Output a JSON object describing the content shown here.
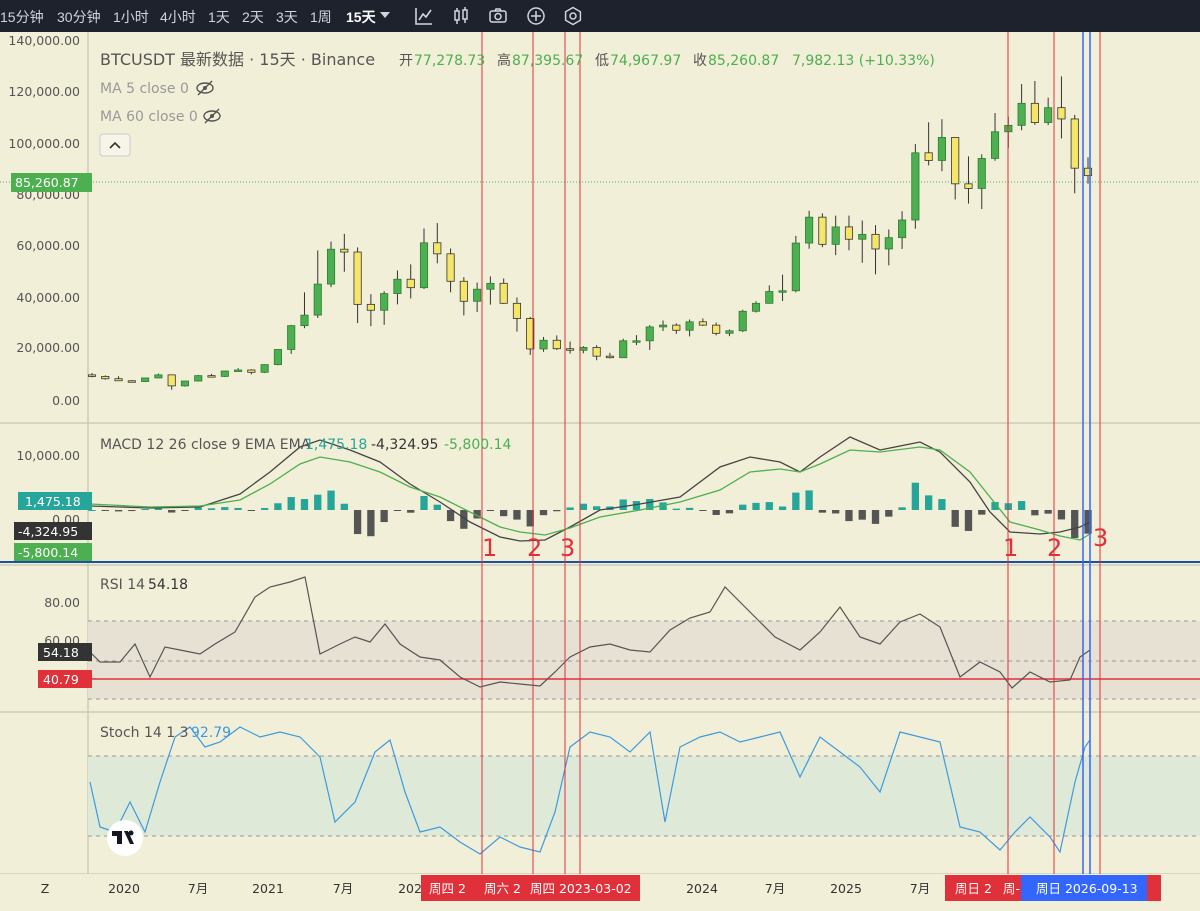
{
  "toolbar": {
    "intervals": [
      "15分钟",
      "30分钟",
      "1小时",
      "4小时",
      "1天",
      "2天",
      "3天",
      "1周"
    ],
    "active_interval": "15天",
    "icons": [
      "chevron-down-icon",
      "indicators-icon",
      "candle-style-icon",
      "camera-icon",
      "add-icon",
      "settings-icon"
    ]
  },
  "legend": {
    "symbol": "BTCUSDT 最新数据 · 15天 · Binance",
    "open_label": "开",
    "open": "77,278.73",
    "high_label": "高",
    "high": "87,395.67",
    "low_label": "低",
    "low": "74,967.97",
    "close_label": "收",
    "close": "85,260.87",
    "change": "7,982.13 (+10.33%)",
    "ma5": "MA 5 close 0",
    "ma60": "MA 60 close 0",
    "collapse_icon": "chevron-up-icon",
    "hidden_icon": "eye-slash-icon"
  },
  "colors": {
    "background": "#f2efd8",
    "up": "#4caf50",
    "down": "#f5e66a",
    "macd_line": "#444444",
    "signal_line": "#4caf50",
    "hist_pos": "#26a69a",
    "hist_neg": "#555555",
    "rsi_line": "#555555",
    "stoch_line": "#3d9ae0",
    "marker_red": "#e0303a",
    "marker_blue": "#3366ff"
  },
  "price_axis": {
    "ticks": [
      "140,000.00",
      "120,000.00",
      "100,000.00",
      "80,000.00",
      "60,000.00",
      "40,000.00",
      "20,000.00",
      "0.00"
    ],
    "current": "85,260.87"
  },
  "macd": {
    "legend": "MACD 12 26 close 9 EMA EMA",
    "hist": "1,475.18",
    "macd": "-4,324.95",
    "signal": "-5,800.14",
    "tick": "10,000.00",
    "zero_tick": "0.00"
  },
  "rsi": {
    "legend": "RSI 14",
    "value": "54.18",
    "ticks": [
      "80.00",
      "60.00"
    ],
    "line_value": "40.79"
  },
  "stoch": {
    "legend": "Stoch 14 1 3",
    "value": "92.79"
  },
  "time_axis": {
    "left_label": "Z",
    "labels": [
      "2020",
      "7月",
      "2021",
      "7月",
      "202",
      "2024",
      "7月",
      "2025",
      "7月"
    ],
    "highlights": [
      "周四 2",
      "周六 2",
      "周四 2023-03-02",
      "周日 2",
      "周-",
      "周日 2026-09-13"
    ]
  },
  "markers": {
    "group_a": [
      "1",
      "2",
      "3"
    ],
    "group_b": [
      "1",
      "2",
      "3"
    ]
  },
  "chart_data": {
    "type": "candlestick",
    "title": "BTCUSDT 最新数据 · 15天 · Binance",
    "ylim": [
      0,
      140000
    ],
    "x_range": [
      "2019-09",
      "2025-12"
    ],
    "candles": [
      [
        "2019-09",
        9800,
        10500,
        8800,
        9200
      ],
      [
        "2019-10",
        9200,
        9600,
        7900,
        8300
      ],
      [
        "2019-11",
        8300,
        9300,
        7400,
        7500
      ],
      [
        "2019-12",
        7500,
        7800,
        6900,
        7200
      ],
      [
        "2020-01",
        7200,
        8700,
        7000,
        8600
      ],
      [
        "2020-02",
        8600,
        10300,
        8500,
        9800
      ],
      [
        "2020-03",
        9800,
        9900,
        4000,
        5500
      ],
      [
        "2020-04",
        5500,
        7500,
        5200,
        7400
      ],
      [
        "2020-05",
        7400,
        9800,
        7200,
        9500
      ],
      [
        "2020-06",
        9500,
        10200,
        9000,
        9200
      ],
      [
        "2020-07",
        9200,
        11400,
        9000,
        11300
      ],
      [
        "2020-08",
        11300,
        12400,
        11000,
        11700
      ],
      [
        "2020-09",
        11700,
        12000,
        10000,
        10800
      ],
      [
        "2020-10",
        10800,
        13900,
        10500,
        13800
      ],
      [
        "2020-11",
        13800,
        19800,
        13500,
        19700
      ],
      [
        "2020-12",
        19700,
        29300,
        18000,
        29000
      ],
      [
        "2021-01",
        29000,
        42000,
        28000,
        33100
      ],
      [
        "2021-02",
        33100,
        58300,
        32000,
        45200
      ],
      [
        "2021-03",
        45200,
        61800,
        44000,
        58800
      ],
      [
        "2021-04",
        58800,
        64800,
        50000,
        57700
      ],
      [
        "2021-05",
        57700,
        59500,
        30000,
        37300
      ],
      [
        "2021-06",
        37300,
        41300,
        28800,
        35000
      ],
      [
        "2021-07",
        35000,
        42400,
        29300,
        41500
      ],
      [
        "2021-08",
        41500,
        50500,
        37300,
        47100
      ],
      [
        "2021-09",
        47100,
        52900,
        39600,
        43800
      ],
      [
        "2021-10",
        43800,
        66900,
        43300,
        61300
      ],
      [
        "2021-11",
        61300,
        69000,
        53300,
        57000
      ],
      [
        "2021-12",
        57000,
        59100,
        42000,
        46300
      ],
      [
        "2022-01",
        46300,
        47900,
        33000,
        38500
      ],
      [
        "2022-02",
        38500,
        45800,
        34300,
        43200
      ],
      [
        "2022-03",
        43200,
        48200,
        37200,
        45500
      ],
      [
        "2022-04",
        45500,
        47400,
        37500,
        37700
      ],
      [
        "2022-05",
        37700,
        40000,
        26700,
        31800
      ],
      [
        "2022-06",
        31800,
        32400,
        17600,
        19900
      ],
      [
        "2022-07",
        19900,
        24600,
        18800,
        23300
      ],
      [
        "2022-08",
        23300,
        25200,
        19500,
        20000
      ],
      [
        "2022-09",
        20000,
        22800,
        18100,
        19400
      ],
      [
        "2022-10",
        19400,
        21000,
        18200,
        20500
      ],
      [
        "2022-11",
        20500,
        21400,
        15500,
        17100
      ],
      [
        "2022-12",
        17100,
        18400,
        16200,
        16500
      ],
      [
        "2023-01",
        16500,
        23900,
        16500,
        23100
      ],
      [
        "2023-02",
        23100,
        25300,
        21400,
        23100
      ],
      [
        "2023-03",
        23100,
        29200,
        19500,
        28500
      ],
      [
        "2023-04",
        28500,
        31000,
        26900,
        29200
      ],
      [
        "2023-05",
        29200,
        29900,
        25800,
        27200
      ],
      [
        "2023-06",
        27200,
        31400,
        24800,
        30500
      ],
      [
        "2023-07",
        30500,
        31800,
        28900,
        29200
      ],
      [
        "2023-08",
        29200,
        30200,
        25200,
        26000
      ],
      [
        "2023-09",
        26000,
        27500,
        24900,
        27000
      ],
      [
        "2023-10",
        27000,
        35200,
        26500,
        34600
      ],
      [
        "2023-11",
        34600,
        38500,
        34100,
        37700
      ],
      [
        "2023-12",
        37700,
        44700,
        37600,
        42300
      ],
      [
        "2024-01",
        42300,
        48900,
        38600,
        42600
      ],
      [
        "2024-02",
        42600,
        64000,
        42000,
        61200
      ],
      [
        "2024-03",
        61200,
        73800,
        59000,
        71300
      ],
      [
        "2024-04",
        71300,
        72800,
        59600,
        60700
      ],
      [
        "2024-05",
        60700,
        71900,
        56500,
        67500
      ],
      [
        "2024-06",
        67500,
        71900,
        58400,
        62700
      ],
      [
        "2024-07",
        62700,
        70000,
        53500,
        64600
      ],
      [
        "2024-08",
        64600,
        68200,
        49000,
        58900
      ],
      [
        "2024-09",
        58900,
        66500,
        52500,
        63300
      ],
      [
        "2024-10",
        63300,
        73600,
        58900,
        70200
      ],
      [
        "2024-11",
        70200,
        99800,
        66800,
        96400
      ],
      [
        "2024-12",
        96400,
        108300,
        91500,
        93400
      ],
      [
        "2025-01",
        93400,
        109500,
        89200,
        102400
      ],
      [
        "2025-02",
        102400,
        102500,
        78200,
        84300
      ],
      [
        "2025-03",
        84300,
        95000,
        76600,
        82500
      ],
      [
        "2025-04",
        82500,
        95800,
        74500,
        94200
      ],
      [
        "2025-05",
        94200,
        111900,
        93300,
        104600
      ],
      [
        "2025-06",
        104600,
        110500,
        98200,
        107100
      ],
      [
        "2025-07",
        107100,
        123200,
        105200,
        115700
      ],
      [
        "2025-08",
        115700,
        124400,
        107300,
        108200
      ],
      [
        "2025-09",
        108200,
        117900,
        107200,
        114000
      ],
      [
        "2025-10",
        114000,
        126200,
        102000,
        109600
      ],
      [
        "2025-11",
        109600,
        111200,
        80600,
        90400
      ],
      [
        "2025-12",
        90400,
        94600,
        84400,
        87500
      ]
    ]
  }
}
